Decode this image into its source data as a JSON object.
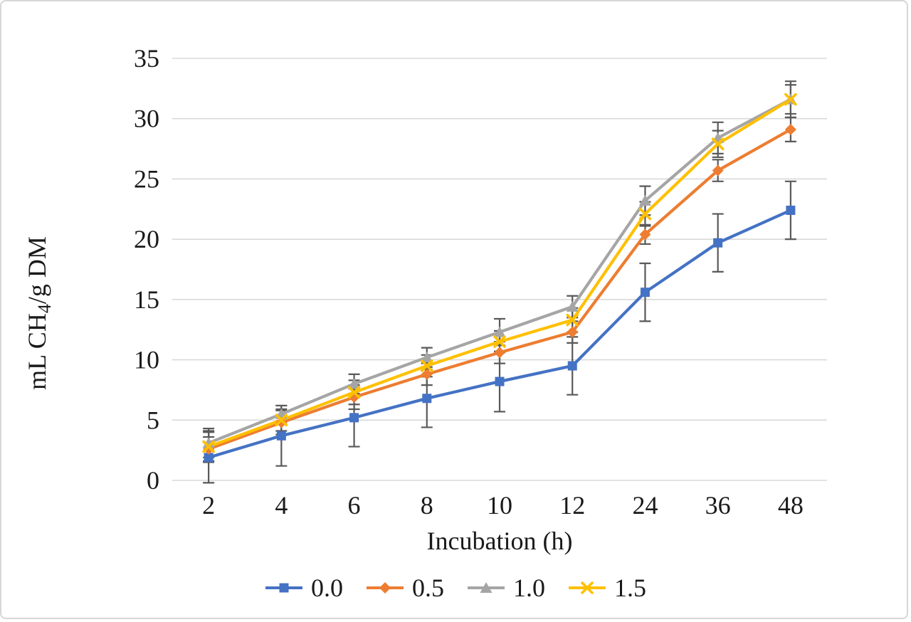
{
  "chart_data": {
    "type": "line",
    "categories": [
      "2",
      "4",
      "6",
      "8",
      "10",
      "12",
      "24",
      "36",
      "48"
    ],
    "xlabel": "Incubation (h)",
    "ylabel": "mL CH4/g DM",
    "ylabel_parts": {
      "pre": "mL CH",
      "sub": "4",
      "post": "/g DM"
    },
    "ylim": [
      0,
      35
    ],
    "yticks": [
      0,
      5,
      10,
      15,
      20,
      25,
      30,
      35
    ],
    "grid": true,
    "legend_position": "bottom",
    "error_bar_color": "#595959",
    "gridline_color": "#d9d9d9",
    "series": [
      {
        "name": "0.0",
        "color": "#4472C4",
        "marker": "square",
        "values": [
          1.9,
          3.7,
          5.2,
          6.8,
          8.2,
          9.5,
          15.6,
          19.7,
          22.4
        ],
        "errors": [
          2.1,
          2.5,
          2.4,
          2.4,
          2.5,
          2.4,
          2.4,
          2.4,
          2.4
        ]
      },
      {
        "name": "0.5",
        "color": "#ED7D31",
        "marker": "diamond",
        "values": [
          2.6,
          4.8,
          6.9,
          8.8,
          10.6,
          12.3,
          20.4,
          25.7,
          29.1
        ],
        "errors": [
          1.0,
          1.0,
          1.0,
          0.9,
          0.9,
          0.9,
          0.8,
          0.9,
          1.0
        ]
      },
      {
        "name": "1.0",
        "color": "#A5A5A5",
        "marker": "triangle",
        "values": [
          3.1,
          5.5,
          8.0,
          10.2,
          12.3,
          14.4,
          23.2,
          28.4,
          31.6
        ],
        "errors": [
          1.2,
          0.7,
          0.8,
          0.8,
          1.1,
          0.9,
          1.2,
          1.3,
          1.5
        ]
      },
      {
        "name": "1.5",
        "color": "#FFC000",
        "marker": "x",
        "values": [
          2.8,
          5.0,
          7.3,
          9.5,
          11.5,
          13.3,
          22.1,
          27.9,
          31.6
        ],
        "errors": [
          1.3,
          0.9,
          1.0,
          0.9,
          0.9,
          1.0,
          1.0,
          1.1,
          1.2
        ]
      }
    ]
  }
}
